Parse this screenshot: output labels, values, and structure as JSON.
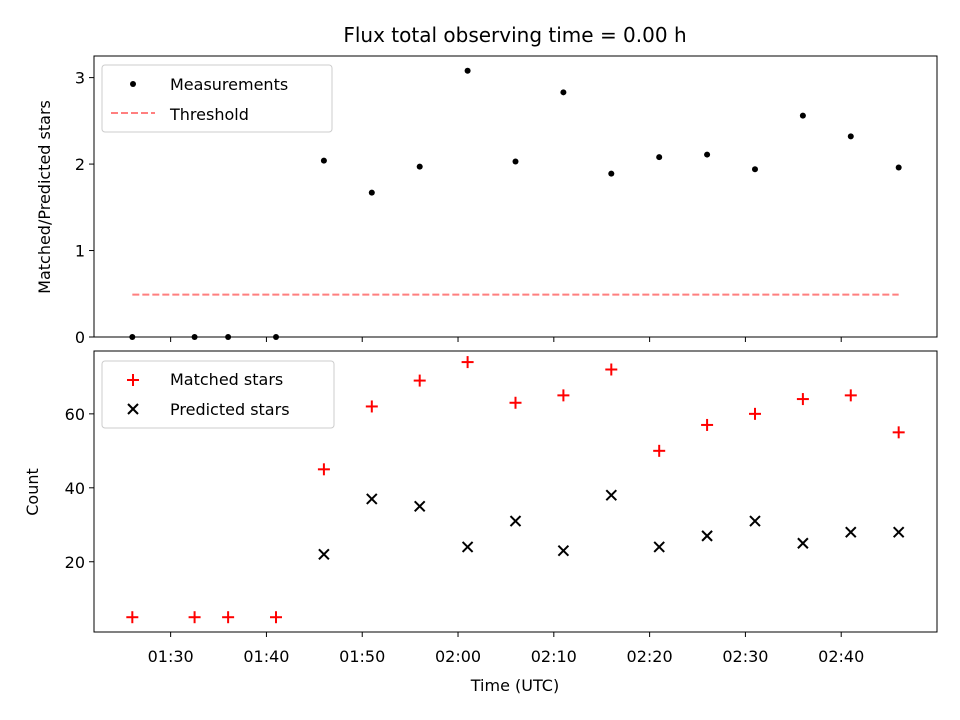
{
  "chart_data": [
    {
      "type": "scatter",
      "title": "Flux total observing time = 0.00 h",
      "xlabel": "",
      "ylabel": "Matched/Predicted stars",
      "ylim": [
        0,
        3.25
      ],
      "yticks": [
        0,
        1,
        2,
        3
      ],
      "x_range_minutes": [
        "01:22",
        "02:50"
      ],
      "legend_position": "top-left",
      "grid": false,
      "series": [
        {
          "name": "Measurements",
          "marker": "dot",
          "color": "#000000",
          "points": [
            {
              "x": "01:26",
              "y": 0
            },
            {
              "x": "01:32.5",
              "y": 0
            },
            {
              "x": "01:36",
              "y": 0
            },
            {
              "x": "01:41",
              "y": 0
            },
            {
              "x": "01:46",
              "y": 2.04
            },
            {
              "x": "01:51",
              "y": 1.67
            },
            {
              "x": "01:56",
              "y": 1.97
            },
            {
              "x": "02:01",
              "y": 3.08
            },
            {
              "x": "02:06",
              "y": 2.03
            },
            {
              "x": "02:11",
              "y": 2.83
            },
            {
              "x": "02:16",
              "y": 1.89
            },
            {
              "x": "02:21",
              "y": 2.08
            },
            {
              "x": "02:26",
              "y": 2.11
            },
            {
              "x": "02:31",
              "y": 1.94
            },
            {
              "x": "02:36",
              "y": 2.56
            },
            {
              "x": "02:41",
              "y": 2.32
            },
            {
              "x": "02:46",
              "y": 1.96
            }
          ]
        },
        {
          "name": "Threshold",
          "marker": "dashed-line",
          "color": "#ff7f7f",
          "points": [
            {
              "x": "01:26",
              "y": 0.49
            },
            {
              "x": "02:46",
              "y": 0.49
            }
          ]
        }
      ]
    },
    {
      "type": "scatter",
      "title": "",
      "xlabel": "Time (UTC)",
      "ylabel": "Count",
      "ylim": [
        1,
        77
      ],
      "yticks": [
        20,
        40,
        60
      ],
      "xticks": [
        "01:30",
        "01:40",
        "01:50",
        "02:00",
        "02:10",
        "02:20",
        "02:30",
        "02:40"
      ],
      "legend_position": "top-left",
      "grid": false,
      "series": [
        {
          "name": "Matched stars",
          "marker": "plus",
          "color": "#ff0000",
          "points": [
            {
              "x": "01:26",
              "y": 5
            },
            {
              "x": "01:32.5",
              "y": 5
            },
            {
              "x": "01:36",
              "y": 5
            },
            {
              "x": "01:41",
              "y": 5
            },
            {
              "x": "01:46",
              "y": 45
            },
            {
              "x": "01:51",
              "y": 62
            },
            {
              "x": "01:56",
              "y": 69
            },
            {
              "x": "02:01",
              "y": 74
            },
            {
              "x": "02:06",
              "y": 63
            },
            {
              "x": "02:11",
              "y": 65
            },
            {
              "x": "02:16",
              "y": 72
            },
            {
              "x": "02:21",
              "y": 50
            },
            {
              "x": "02:26",
              "y": 57
            },
            {
              "x": "02:31",
              "y": 60
            },
            {
              "x": "02:36",
              "y": 64
            },
            {
              "x": "02:41",
              "y": 65
            },
            {
              "x": "02:46",
              "y": 55
            }
          ]
        },
        {
          "name": "Predicted stars",
          "marker": "x",
          "color": "#000000",
          "points": [
            {
              "x": "01:46",
              "y": 22
            },
            {
              "x": "01:51",
              "y": 37
            },
            {
              "x": "01:56",
              "y": 35
            },
            {
              "x": "02:01",
              "y": 24
            },
            {
              "x": "02:06",
              "y": 31
            },
            {
              "x": "02:11",
              "y": 23
            },
            {
              "x": "02:16",
              "y": 38
            },
            {
              "x": "02:21",
              "y": 24
            },
            {
              "x": "02:26",
              "y": 27
            },
            {
              "x": "02:31",
              "y": 31
            },
            {
              "x": "02:36",
              "y": 25
            },
            {
              "x": "02:41",
              "y": 28
            },
            {
              "x": "02:46",
              "y": 28
            }
          ]
        }
      ]
    }
  ]
}
